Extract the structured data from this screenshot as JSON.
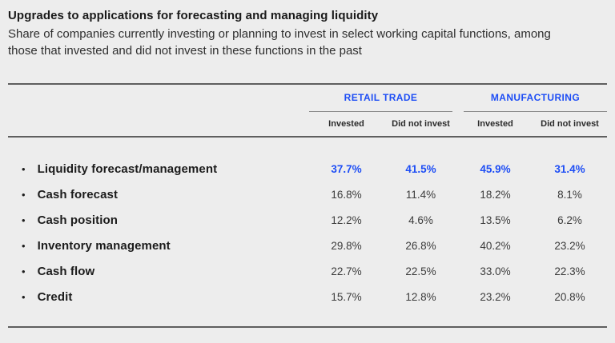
{
  "header": {
    "title": "Upgrades to applications for forecasting and managing liquidity",
    "subtitle": "Share of companies currently investing or planning to invest in select working capital functions, among those that invested and did not invest in these functions in the past"
  },
  "table": {
    "groups": [
      {
        "label": "RETAIL TRADE"
      },
      {
        "label": "MANUFACTURING"
      }
    ],
    "sub_headers": [
      "Invested",
      "Did not invest",
      "Invested",
      "Did not invest"
    ],
    "rows": [
      {
        "label": "Liquidity forecast/management",
        "values": [
          "37.7%",
          "41.5%",
          "45.9%",
          "31.4%"
        ],
        "highlight": true
      },
      {
        "label": "Cash forecast",
        "values": [
          "16.8%",
          "11.4%",
          "18.2%",
          "8.1%"
        ],
        "highlight": false
      },
      {
        "label": "Cash position",
        "values": [
          "12.2%",
          "4.6%",
          "13.5%",
          "6.2%"
        ],
        "highlight": false
      },
      {
        "label": "Inventory management",
        "values": [
          "29.8%",
          "26.8%",
          "40.2%",
          "23.2%"
        ],
        "highlight": false
      },
      {
        "label": "Cash flow",
        "values": [
          "22.7%",
          "22.5%",
          "33.0%",
          "22.3%"
        ],
        "highlight": false
      },
      {
        "label": "Credit",
        "values": [
          "15.7%",
          "12.8%",
          "23.2%",
          "20.8%"
        ],
        "highlight": false
      }
    ]
  },
  "colors": {
    "accent_blue": "#1e4ef5",
    "background": "#ededed",
    "rule": "#5f5f5f",
    "group_underline": "#8a8a8a"
  },
  "chart_data": {
    "type": "table",
    "title": "Upgrades to applications for forecasting and managing liquidity",
    "subtitle": "Share of companies currently investing or planning to invest in select working capital functions, among those that invested and did not invest in these functions in the past",
    "column_groups": [
      "RETAIL TRADE",
      "MANUFACTURING"
    ],
    "columns": [
      "Retail Trade - Invested",
      "Retail Trade - Did not invest",
      "Manufacturing - Invested",
      "Manufacturing - Did not invest"
    ],
    "unit": "percent",
    "rows": [
      {
        "label": "Liquidity forecast/management",
        "values": [
          37.7,
          41.5,
          45.9,
          31.4
        ]
      },
      {
        "label": "Cash forecast",
        "values": [
          16.8,
          11.4,
          18.2,
          8.1
        ]
      },
      {
        "label": "Cash position",
        "values": [
          12.2,
          4.6,
          13.5,
          6.2
        ]
      },
      {
        "label": "Inventory management",
        "values": [
          29.8,
          26.8,
          40.2,
          23.2
        ]
      },
      {
        "label": "Cash flow",
        "values": [
          22.7,
          22.5,
          33.0,
          22.3
        ]
      },
      {
        "label": "Credit",
        "values": [
          15.7,
          12.8,
          23.2,
          20.8
        ]
      }
    ],
    "highlighted_row": "Liquidity forecast/management",
    "layout": {
      "highlight_color": "#1e4ef5",
      "header_color": "#1e4ef5"
    }
  }
}
